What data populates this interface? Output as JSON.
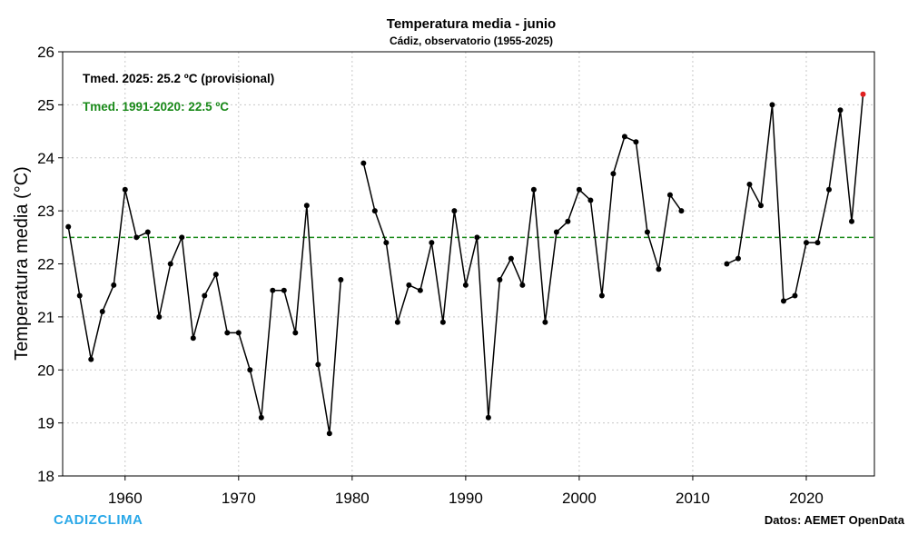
{
  "chart_data": {
    "type": "line",
    "title": "Temperatura media - junio",
    "subtitle": "Cádiz, observatorio (1955-2025)",
    "ylabel": "Temperatura media (°C)",
    "xlabel": "",
    "xlim": [
      1954.5,
      2026
    ],
    "ylim": [
      18,
      26
    ],
    "xticks": [
      1960,
      1970,
      1980,
      1990,
      2000,
      2010,
      2020
    ],
    "yticks": [
      18,
      19,
      20,
      21,
      22,
      23,
      24,
      25,
      26
    ],
    "grid": true,
    "reference_line": {
      "value": 22.5,
      "label": "Tmed. 1991-2020: 22.5 ºC",
      "color": "#1a8a1a",
      "style": "dashed"
    },
    "annotations": [
      {
        "text": "Tmed. 2025: 25.2 ºC (provisional)",
        "color": "#000000"
      }
    ],
    "highlight": {
      "x": 2025,
      "y": 25.2,
      "color": "#e02020"
    },
    "series": [
      {
        "name": "Temperatura media junio",
        "color": "#000000",
        "x": [
          1955,
          1956,
          1957,
          1958,
          1959,
          1960,
          1961,
          1962,
          1963,
          1964,
          1965,
          1966,
          1967,
          1968,
          1969,
          1970,
          1971,
          1972,
          1973,
          1974,
          1975,
          1976,
          1977,
          1978,
          1979,
          1980,
          1981,
          1982,
          1983,
          1984,
          1985,
          1986,
          1987,
          1988,
          1989,
          1990,
          1991,
          1992,
          1993,
          1994,
          1995,
          1996,
          1997,
          1998,
          1999,
          2000,
          2001,
          2002,
          2003,
          2004,
          2005,
          2006,
          2007,
          2008,
          2009,
          2010,
          2011,
          2012,
          2013,
          2014,
          2015,
          2016,
          2017,
          2018,
          2019,
          2020,
          2021,
          2022,
          2023,
          2024,
          2025
        ],
        "values": [
          22.7,
          21.4,
          20.2,
          21.1,
          21.6,
          23.4,
          22.5,
          22.6,
          21.0,
          22.0,
          22.5,
          20.6,
          21.4,
          21.8,
          20.7,
          20.7,
          20.0,
          19.1,
          21.5,
          21.5,
          20.7,
          23.1,
          20.1,
          18.8,
          21.7,
          null,
          23.9,
          23.0,
          22.4,
          20.9,
          21.6,
          21.5,
          22.4,
          20.9,
          23.0,
          21.6,
          22.5,
          19.1,
          21.7,
          22.1,
          21.6,
          23.4,
          20.9,
          22.6,
          22.8,
          23.4,
          23.2,
          21.4,
          23.7,
          24.4,
          24.3,
          22.6,
          21.9,
          23.3,
          23.0,
          null,
          null,
          null,
          22.0,
          22.1,
          23.5,
          23.1,
          25.0,
          21.3,
          21.4,
          22.4,
          22.4,
          23.4,
          24.9,
          22.8,
          25.2
        ]
      }
    ]
  },
  "footer": {
    "brand": "CADIZCLIMA",
    "source": "Datos: AEMET OpenData"
  },
  "colors": {
    "line": "#000000",
    "reference": "#1a8a1a",
    "highlight": "#e02020",
    "brand": "#2aa8e8",
    "grid": "#c8c8c8"
  }
}
